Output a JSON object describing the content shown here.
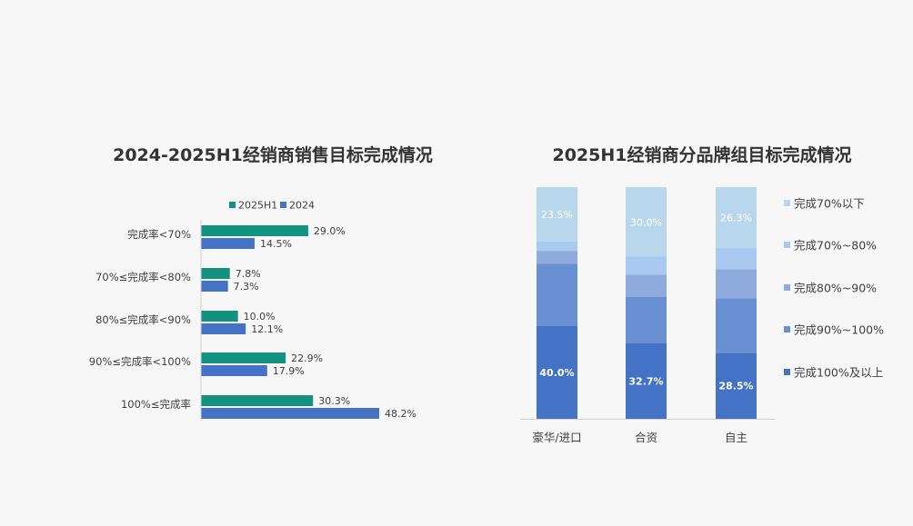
{
  "colors": {
    "h1_2025": "#13927f",
    "y2024": "#4472c4",
    "seg_100": "#4472c4",
    "seg_90_100": "#6a90d4",
    "seg_80_90": "#8faadc",
    "seg_70_80": "#a9c9f0",
    "seg_lt70": "#b8d6ec"
  },
  "chart_data": [
    {
      "type": "bar",
      "orientation": "horizontal",
      "title": "2024-2025H1经销商销售目标完成情况",
      "legend_position": "top",
      "categories": [
        "完成率<70%",
        "70%≤完成率<80%",
        "80%≤完成率<90%",
        "90%≤完成率<100%",
        "100%≤完成率"
      ],
      "series": [
        {
          "name": "2025H1",
          "values": [
            29.0,
            7.8,
            10.0,
            22.9,
            30.3
          ],
          "labels": [
            "29.0%",
            "7.8%",
            "10.0%",
            "22.9%",
            "30.3%"
          ]
        },
        {
          "name": "2024",
          "values": [
            14.5,
            7.3,
            12.1,
            17.9,
            48.2
          ],
          "labels": [
            "14.5%",
            "7.3%",
            "12.1%",
            "17.9%",
            "48.2%"
          ]
        }
      ],
      "xlim": [
        0,
        60
      ],
      "grid": false
    },
    {
      "type": "bar",
      "stacked": true,
      "title": "2025H1经销商分品牌组目标完成情况",
      "legend_position": "right",
      "categories": [
        "豪华/进口",
        "合资",
        "自主"
      ],
      "series": [
        {
          "name": "完成100%及以上",
          "values": [
            40.0,
            32.7,
            28.5
          ],
          "labels": [
            "40.0%",
            "32.7%",
            "28.5%"
          ]
        },
        {
          "name": "完成90%~100%",
          "values": [
            27.0,
            20.0,
            23.5
          ],
          "labels": [
            "",
            "",
            ""
          ]
        },
        {
          "name": "完成80%~90%",
          "values": [
            5.5,
            9.5,
            12.5
          ],
          "labels": [
            "",
            "",
            ""
          ]
        },
        {
          "name": "完成70%~80%",
          "values": [
            4.0,
            7.8,
            9.2
          ],
          "labels": [
            "",
            "",
            ""
          ]
        },
        {
          "name": "完成70%以下",
          "values": [
            23.5,
            30.0,
            26.3
          ],
          "labels": [
            "23.5%",
            "30.0%",
            "26.3%"
          ]
        }
      ],
      "legend_order": [
        "完成70%以下",
        "完成70%~80%",
        "完成80%~90%",
        "完成90%~100%",
        "完成100%及以上"
      ],
      "ylim": [
        0,
        100
      ],
      "grid": false
    }
  ]
}
